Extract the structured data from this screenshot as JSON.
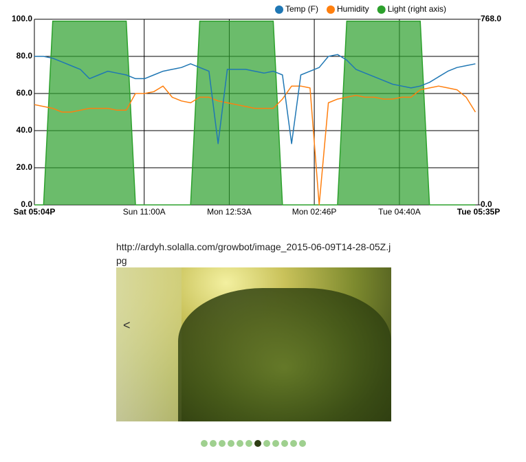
{
  "chart_data": {
    "type": "line",
    "legend_position": "top-right",
    "grid": true,
    "x": [
      0,
      1.5,
      3,
      4.5,
      6,
      7.5,
      9,
      10.5,
      12,
      13.5,
      15,
      16.5,
      18,
      19.5,
      21,
      22.5,
      24,
      25.5,
      27,
      28.5,
      30,
      31.5,
      33,
      34.5,
      36,
      37.5,
      39,
      40.5,
      42,
      43.5,
      45,
      46.5,
      48,
      49.5,
      51,
      52.5,
      54,
      55.5,
      57,
      58.5,
      60,
      61.5,
      63,
      64.5,
      66,
      67.5,
      69,
      70.5,
      72
    ],
    "xlim": [
      0,
      72.52
    ],
    "xticks": [
      {
        "value": 0,
        "label": "Sat 05:04P"
      },
      {
        "value": 17.93,
        "label": "Sun 11:00A"
      },
      {
        "value": 31.82,
        "label": "Mon 12:53A"
      },
      {
        "value": 45.7,
        "label": "Mon 02:46P"
      },
      {
        "value": 59.6,
        "label": "Tue 04:40A"
      },
      {
        "value": 72.52,
        "label": "Tue 05:35P"
      }
    ],
    "ylim": [
      0,
      100
    ],
    "yticks": [
      {
        "value": 0,
        "label": "0.0"
      },
      {
        "value": 20,
        "label": "20.0"
      },
      {
        "value": 40,
        "label": "40.0"
      },
      {
        "value": 60,
        "label": "60.0"
      },
      {
        "value": 80,
        "label": "80.0"
      },
      {
        "value": 100,
        "label": "100.0"
      }
    ],
    "y2lim": [
      0,
      768
    ],
    "y2ticks": [
      {
        "value": 0,
        "label": "0.0"
      },
      {
        "value": 768,
        "label": "768.0"
      }
    ],
    "series": [
      {
        "name": "Light (right axis)",
        "color": "#2ca02c",
        "axis": "y2",
        "values": [
          0,
          0,
          760,
          760,
          760,
          760,
          760,
          760,
          760,
          760,
          760,
          0,
          0,
          0,
          0,
          0,
          0,
          0,
          760,
          760,
          760,
          760,
          760,
          760,
          760,
          760,
          760,
          0,
          0,
          0,
          0,
          0,
          0,
          0,
          760,
          760,
          760,
          760,
          760,
          760,
          760,
          760,
          760,
          0,
          0,
          0,
          0,
          0,
          0
        ]
      },
      {
        "name": "Humidity",
        "color": "#ff7f0e",
        "values": [
          54,
          53,
          52,
          50,
          50,
          51,
          52,
          52,
          52,
          51,
          51,
          60,
          60,
          61,
          64,
          58,
          56,
          55,
          58,
          58,
          56,
          55,
          54,
          53,
          52,
          52,
          52,
          57,
          64,
          64,
          63,
          0,
          55,
          57,
          58,
          59,
          58,
          58,
          57,
          57,
          58,
          58,
          62,
          63,
          64,
          63,
          62,
          58,
          50
        ]
      },
      {
        "name": "Temp (F)",
        "color": "#1f77b4",
        "values": [
          80,
          80,
          79,
          77,
          75,
          73,
          68,
          70,
          72,
          71,
          70,
          68,
          68,
          70,
          72,
          73,
          74,
          76,
          74,
          72,
          33,
          73,
          73,
          73,
          72,
          71,
          72,
          70,
          33,
          70,
          72,
          74,
          80,
          81,
          78,
          73,
          71,
          69,
          67,
          65,
          64,
          63,
          64,
          66,
          69,
          72,
          74,
          75,
          76
        ]
      }
    ]
  },
  "image_caption": "http://ardyh.solalla.com/growbot/image_2015-06-09T14-28-05Z.jpg",
  "carousel": {
    "prev": "<"
  }
}
